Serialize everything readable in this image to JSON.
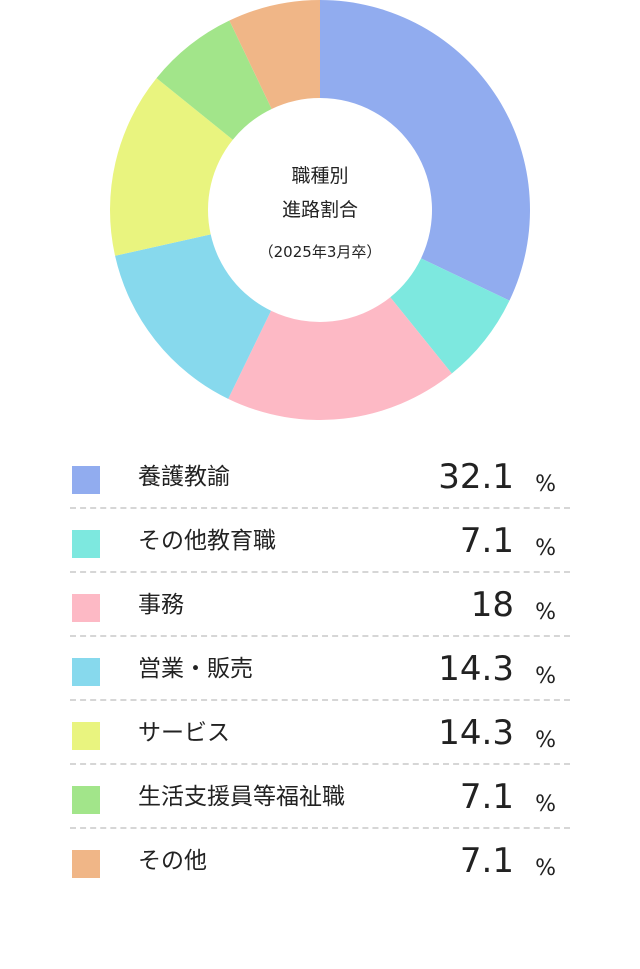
{
  "chart_data": {
    "type": "pie",
    "center_title_lines": [
      "職種別",
      "進路割合"
    ],
    "center_subtitle": "（2025年3月卒）",
    "unit": "%",
    "categories": [
      "養護教諭",
      "その他教育職",
      "事務",
      "営業・販売",
      "サービス",
      "生活支援員等福祉職",
      "その他"
    ],
    "values": [
      32.1,
      7.1,
      18,
      14.3,
      14.3,
      7.1,
      7.1
    ],
    "colors": [
      "#91acef",
      "#7de8df",
      "#fdb9c5",
      "#87d9ed",
      "#e9f47f",
      "#a2e58a",
      "#f0b687"
    ],
    "legend_position": "bottom"
  }
}
